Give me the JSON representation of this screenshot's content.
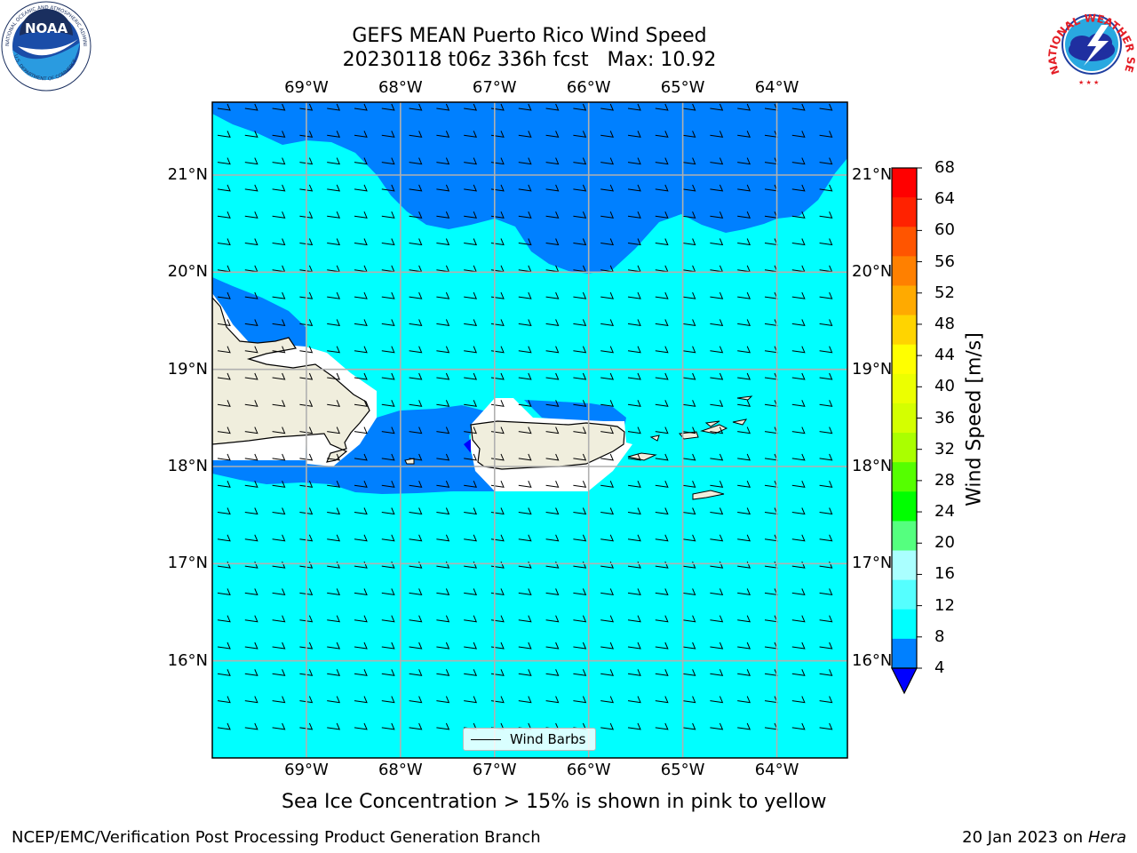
{
  "header": {
    "title_line1": "GEFS MEAN Puerto Rico Wind Speed",
    "title_line2": "20230118 t06z 336h fcst   Max: 10.92"
  },
  "logos": {
    "left": {
      "text": "NOAA",
      "ring_top": "NATIONAL OCEANIC AND ATMOSPHERIC ADMINISTRATION",
      "ring_bottom": "U.S. DEPARTMENT OF COMMERCE",
      "icon": "noaa-logo-icon"
    },
    "right": {
      "ring": "NATIONAL WEATHER SERVICE",
      "icon": "nws-logo-icon"
    }
  },
  "map": {
    "lon_labels": [
      "69°W",
      "68°W",
      "67°W",
      "66°W",
      "65°W",
      "64°W"
    ],
    "lat_labels": [
      "21°N",
      "20°N",
      "19°N",
      "18°N",
      "17°N",
      "16°N"
    ],
    "lon_values": [
      -69,
      -68,
      -67,
      -66,
      -65,
      -64
    ],
    "lat_values": [
      21,
      20,
      19,
      18,
      17,
      16
    ],
    "extent": {
      "lon_min": -70.0,
      "lon_max": -63.25,
      "lat_min": 15.0,
      "lat_max": 21.75
    },
    "colors": {
      "land": "#f0eedd",
      "water_blue": "#0080ff",
      "water_cyan": "#00ffff",
      "grid": "#b0b0b0"
    },
    "legend_label": "Wind Barbs",
    "wind_direction": "easterly"
  },
  "colorbar": {
    "label": "Wind Speed [m/s]",
    "ticks": [
      "68",
      "64",
      "60",
      "56",
      "52",
      "48",
      "44",
      "40",
      "36",
      "32",
      "28",
      "24",
      "20",
      "16",
      "12",
      "8",
      "4"
    ],
    "colors": [
      "#ff0000",
      "#ff2200",
      "#ff5500",
      "#ff8000",
      "#ffaa00",
      "#ffd400",
      "#ffff00",
      "#ecff00",
      "#d4ff00",
      "#aaff00",
      "#55ff00",
      "#00ff00",
      "#55ff7f",
      "#aaffff",
      "#55ffff",
      "#00ffff",
      "#0080ff"
    ],
    "extend_color": "#0000ff"
  },
  "footer": {
    "note": "Sea Ice Concentration > 15% is shown in pink to yellow",
    "left": "NCEP/EMC/Verification Post Processing Product Generation Branch",
    "date": "20 Jan 2023 on ",
    "machine": "Hera"
  }
}
